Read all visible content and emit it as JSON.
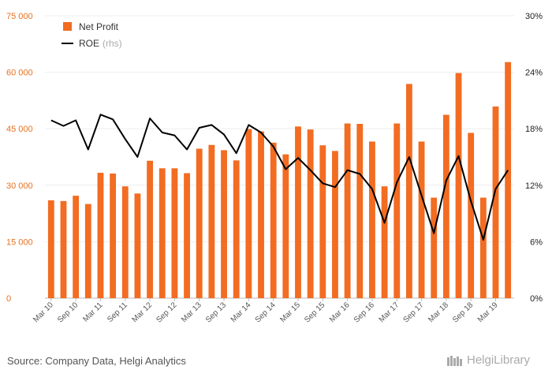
{
  "chart_data": {
    "type": "bar+line",
    "title": "",
    "categories": [
      "Mar 10",
      "Jun 10",
      "Sep 10",
      "Dec 10",
      "Mar 11",
      "Jun 11",
      "Sep 11",
      "Dec 11",
      "Mar 12",
      "Jun 12",
      "Sep 12",
      "Dec 12",
      "Mar 13",
      "Jun 13",
      "Sep 13",
      "Dec 13",
      "Mar 14",
      "Jun 14",
      "Sep 14",
      "Dec 14",
      "Mar 15",
      "Jun 15",
      "Sep 15",
      "Dec 15",
      "Mar 16",
      "Jun 16",
      "Sep 16",
      "Dec 16",
      "Mar 17",
      "Jun 17",
      "Sep 17",
      "Dec 17",
      "Mar 18",
      "Jun 18",
      "Sep 18",
      "Dec 18",
      "Mar 19",
      "Jun 19"
    ],
    "x_tick_labels": [
      "Mar 10",
      "Sep 10",
      "Mar 11",
      "Sep 11",
      "Mar 12",
      "Sep 12",
      "Mar 13",
      "Sep 13",
      "Mar 14",
      "Sep 14",
      "Mar 15",
      "Sep 15",
      "Mar 16",
      "Sep 16",
      "Mar 17",
      "Sep 17",
      "Mar 18",
      "Sep 18",
      "Mar 19"
    ],
    "series": [
      {
        "name": "Net Profit",
        "axis": "left",
        "type": "bar",
        "color": "#f26c22",
        "values": [
          26000,
          25800,
          27200,
          25000,
          33300,
          33100,
          29700,
          27800,
          36500,
          34500,
          34500,
          33200,
          39700,
          40700,
          39300,
          36600,
          44900,
          44300,
          41300,
          38200,
          45600,
          44800,
          40600,
          39100,
          46400,
          46300,
          41600,
          29700,
          46400,
          56900,
          41600,
          26700,
          48700,
          59800,
          43900,
          26700,
          50900,
          62700
        ]
      },
      {
        "name": "ROE",
        "name_suffix": "(rhs)",
        "axis": "right",
        "type": "line",
        "color": "#000000",
        "values": [
          18.9,
          18.3,
          18.9,
          15.8,
          19.5,
          19.0,
          16.9,
          15.0,
          19.1,
          17.6,
          17.3,
          15.8,
          18.1,
          18.4,
          17.4,
          15.4,
          18.4,
          17.6,
          16.1,
          13.7,
          14.9,
          13.6,
          12.2,
          11.8,
          13.6,
          13.2,
          11.6,
          8.0,
          12.3,
          15.0,
          10.9,
          6.9,
          12.5,
          15.1,
          10.3,
          6.2,
          11.6,
          13.6
        ]
      }
    ],
    "y_left": {
      "ticks": [
        "0",
        "15 000",
        "30 000",
        "45 000",
        "60 000",
        "75 000"
      ],
      "min": 0,
      "max": 75000
    },
    "y_right": {
      "ticks": [
        "0%",
        "6%",
        "12%",
        "18%",
        "24%",
        "30%"
      ],
      "min": 0,
      "max": 30
    },
    "grid": true,
    "legend_position": "top-left",
    "source_text": "Source: Company Data, Helgi Analytics",
    "logo_text": "HelgiLibrary"
  }
}
